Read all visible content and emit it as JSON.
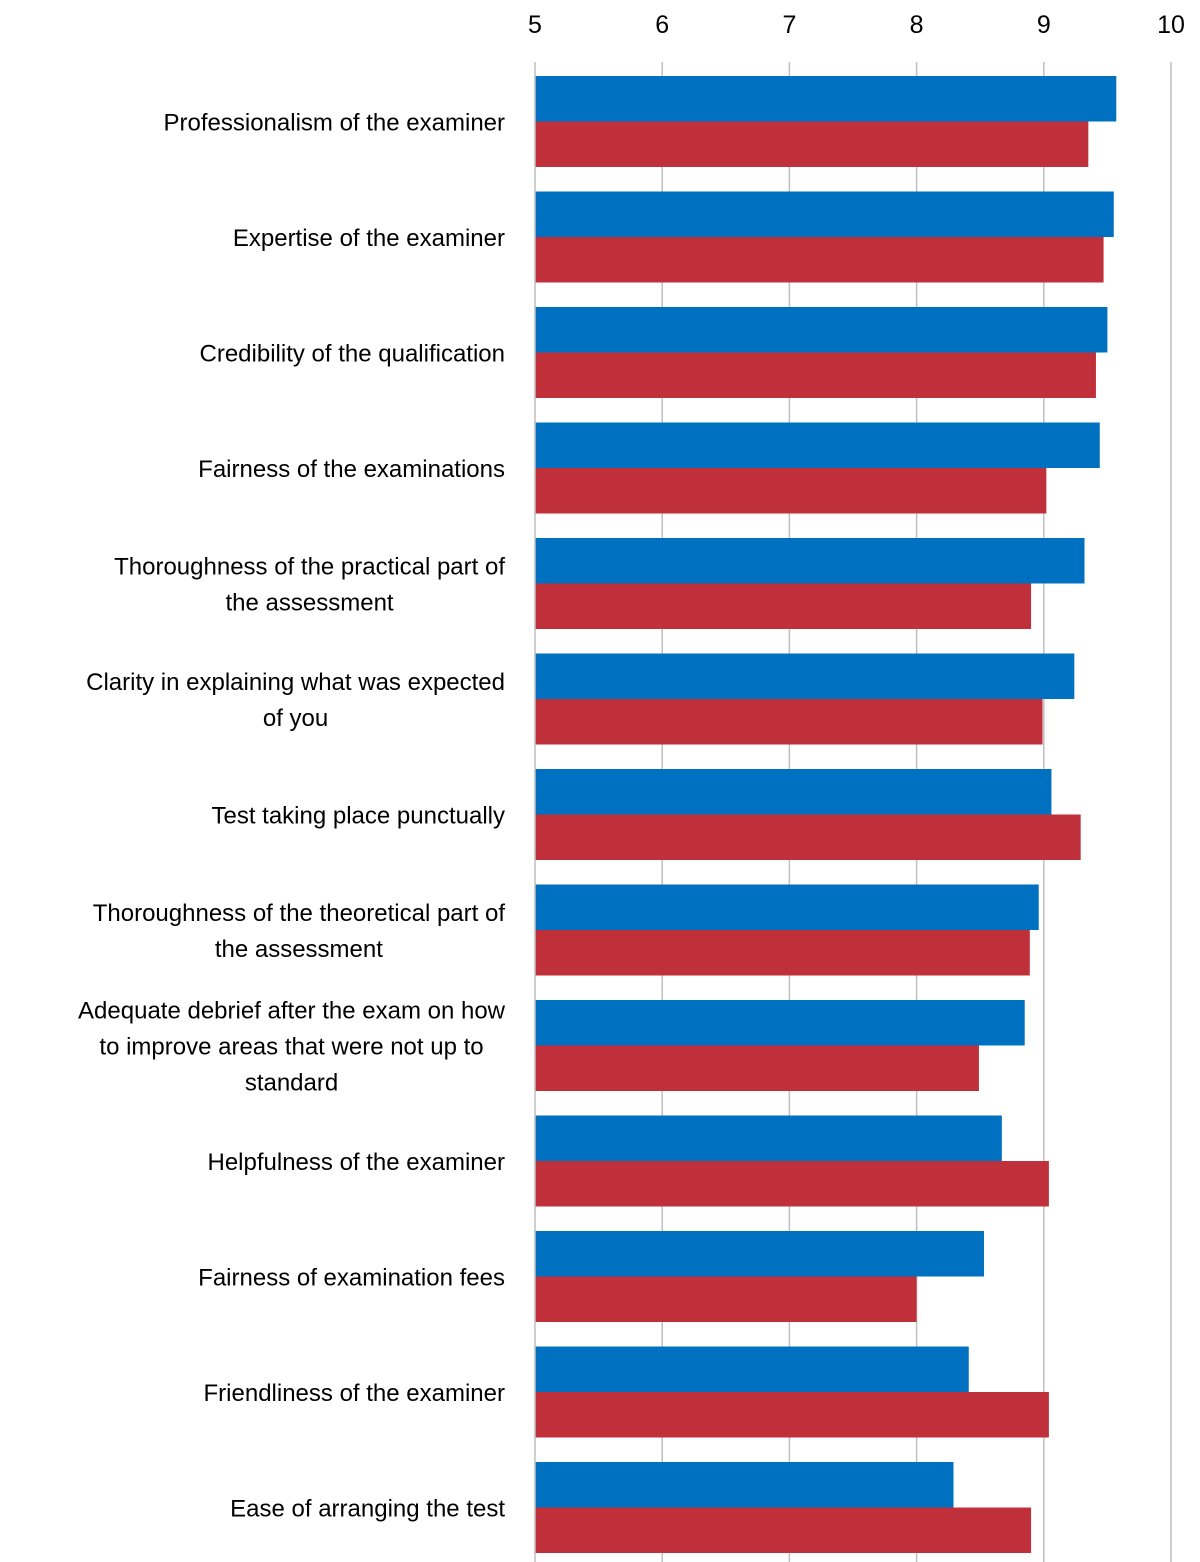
{
  "chart_data": {
    "type": "bar",
    "orientation": "horizontal",
    "title": "",
    "xlabel": "",
    "ylabel": "",
    "xlim": [
      5,
      10
    ],
    "x_ticks": [
      "5",
      "6",
      "7",
      "8",
      "9",
      "10"
    ],
    "x_axis_position": "top",
    "grid": "vertical",
    "legend": "none",
    "categories": [
      "Professionalism of the examiner",
      "Expertise of the examiner",
      "Credibility of the qualification",
      "Fairness of the examinations",
      "Thoroughness of the practical part of the assessment",
      "Clarity in explaining what was expected of you",
      "Test taking place punctually",
      "Thoroughness of the theoretical part of the assessment",
      "Adequate debrief after the exam on how to improve areas that were not up to standard",
      "Helpfulness of the examiner",
      "Fairness of examination fees",
      "Friendliness of the examiner",
      "Ease of arranging the test"
    ],
    "category_lines": [
      [
        "Professionalism of the examiner"
      ],
      [
        "Expertise of the examiner"
      ],
      [
        "Credibility of the qualification"
      ],
      [
        "Fairness of the examinations"
      ],
      [
        "Thoroughness of the practical part of",
        "the assessment"
      ],
      [
        "Clarity in explaining what was expected",
        "of you"
      ],
      [
        "Test taking place punctually"
      ],
      [
        "Thoroughness of the theoretical part of",
        "the assessment"
      ],
      [
        "Adequate debrief after the exam on how",
        "to improve areas that were not up to",
        "standard"
      ],
      [
        "Helpfulness of the examiner"
      ],
      [
        "Fairness of examination fees"
      ],
      [
        "Friendliness of the examiner"
      ],
      [
        "Ease of arranging the test"
      ]
    ],
    "series": [
      {
        "color": "#0070C0",
        "values": [
          9.57,
          9.55,
          9.5,
          9.44,
          9.32,
          9.24,
          9.06,
          8.96,
          8.85,
          8.67,
          8.53,
          8.41,
          8.29
        ]
      },
      {
        "color": "#C0303A",
        "values": [
          9.35,
          9.47,
          9.41,
          9.02,
          8.9,
          8.99,
          9.29,
          8.89,
          8.49,
          9.04,
          8.0,
          9.04,
          8.9
        ]
      }
    ]
  }
}
